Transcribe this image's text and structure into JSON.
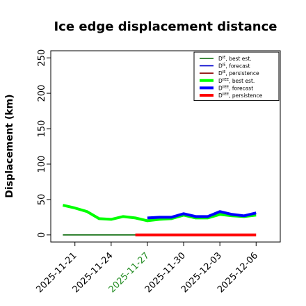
{
  "chart_data": {
    "type": "line",
    "title": "Ice edge displacement distance",
    "ylabel": "Displacement (km)",
    "xlabel": "",
    "ylim": [
      0,
      260
    ],
    "xlim": [
      "2025-11-19",
      "2025-12-08"
    ],
    "yticks": [
      0,
      50,
      100,
      150,
      200,
      250
    ],
    "xticks": [
      "2025-11-21",
      "2025-11-24",
      "2025-11-27",
      "2025-11-30",
      "2025-12-03",
      "2025-12-06"
    ],
    "highlight_xtick": "2025-11-27",
    "highlight_color": "#228B22",
    "grid": false,
    "legend_position": "top-right",
    "series": [
      {
        "key": "d_ie_best",
        "name": "best est.",
        "legend_base": "D",
        "legend_sup": "IE",
        "color": "#006400",
        "width": "thin",
        "x": [
          "2025-11-20",
          "2025-11-21",
          "2025-11-22",
          "2025-11-23",
          "2025-11-24",
          "2025-11-25",
          "2025-11-26",
          "2025-11-27"
        ],
        "values": [
          0,
          0,
          0,
          0,
          0,
          0,
          0,
          0
        ]
      },
      {
        "key": "d_ie_forecast",
        "name": "forecast",
        "legend_base": "D",
        "legend_sup": "IE",
        "color": "#0000CD",
        "width": "thin",
        "x": [],
        "values": []
      },
      {
        "key": "d_ie_persistence",
        "name": "persistence",
        "legend_base": "D",
        "legend_sup": "IE",
        "color": "#8B0000",
        "width": "thin",
        "x": [],
        "values": []
      },
      {
        "key": "d_iiee_best",
        "name": "best est.",
        "legend_base": "D",
        "legend_sup": "IIEE",
        "color": "#00FF00",
        "width": "thick",
        "x": [
          "2025-11-20",
          "2025-11-21",
          "2025-11-22",
          "2025-11-23",
          "2025-11-24",
          "2025-11-25",
          "2025-11-26",
          "2025-11-27",
          "2025-11-28",
          "2025-11-29",
          "2025-11-30",
          "2025-12-01",
          "2025-12-02",
          "2025-12-03",
          "2025-12-04",
          "2025-12-05",
          "2025-12-06"
        ],
        "values": [
          42,
          38,
          33,
          23,
          22,
          26,
          24,
          20,
          22,
          23,
          28,
          24,
          24,
          29,
          27,
          26,
          28
        ]
      },
      {
        "key": "d_iiee_forecast",
        "name": "forecast",
        "legend_base": "D",
        "legend_sup": "IIEE",
        "color": "#0000FF",
        "width": "thick",
        "x": [
          "2025-11-27",
          "2025-11-28",
          "2025-11-29",
          "2025-11-30",
          "2025-12-01",
          "2025-12-02",
          "2025-12-03",
          "2025-12-04",
          "2025-12-05",
          "2025-12-06"
        ],
        "values": [
          24,
          25,
          25,
          30,
          26,
          26,
          33,
          29,
          27,
          31
        ]
      },
      {
        "key": "d_iiee_persistence",
        "name": "persistence",
        "legend_base": "D",
        "legend_sup": "IIEE",
        "color": "#FF0000",
        "width": "thick",
        "x": [
          "2025-11-26",
          "2025-11-27",
          "2025-11-28",
          "2025-11-29",
          "2025-11-30",
          "2025-12-01",
          "2025-12-02",
          "2025-12-03",
          "2025-12-04",
          "2025-12-05",
          "2025-12-06"
        ],
        "values": [
          0,
          0,
          0,
          0,
          0,
          0,
          0,
          0,
          0,
          0,
          0
        ]
      }
    ]
  }
}
